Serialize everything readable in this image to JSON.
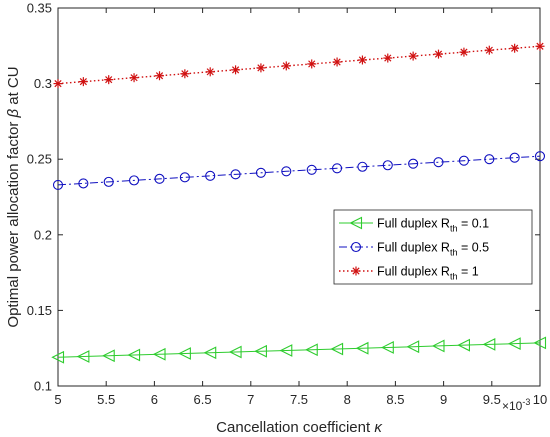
{
  "chart_data": {
    "type": "line",
    "title": "",
    "xlabel_text": "Cancellation coefficient",
    "xlabel_symbol": "κ",
    "ylabel_text": "Optimal power allocation factor",
    "ylabel_symbol": "β",
    "ylabel_suffix": "at CU",
    "x_multiplier": "×10",
    "x_multiplier_exp": "-3",
    "xlim": [
      5,
      10
    ],
    "ylim": [
      0.1,
      0.35
    ],
    "xticks": [
      5,
      5.5,
      6,
      6.5,
      7,
      7.5,
      8,
      8.5,
      9,
      9.5,
      10
    ],
    "xtick_labels": [
      "5",
      "5.5",
      "6",
      "6.5",
      "7",
      "7.5",
      "8",
      "8.5",
      "9",
      "9.5",
      "10"
    ],
    "yticks": [
      0.1,
      0.15,
      0.2,
      0.25,
      0.3,
      0.35
    ],
    "ytick_labels": [
      "0.1",
      "0.15",
      "0.2",
      "0.25",
      "0.3",
      "0.35"
    ],
    "grid": false,
    "legend_position": "center-right",
    "x": [
      5.0,
      5.263,
      5.526,
      5.789,
      6.053,
      6.316,
      6.579,
      6.842,
      7.105,
      7.368,
      7.632,
      7.895,
      8.158,
      8.421,
      8.684,
      8.947,
      9.211,
      9.474,
      9.737,
      10.0
    ],
    "series": [
      {
        "label_prefix": "Full duplex R",
        "label_sub": "th",
        "label_suffix": " = 0.1",
        "color": "#2ecc2e",
        "line_style": "solid",
        "marker": "triangle-left",
        "values": [
          0.119,
          0.1195,
          0.12,
          0.1205,
          0.121,
          0.1215,
          0.122,
          0.1225,
          0.123,
          0.1235,
          0.124,
          0.1245,
          0.125,
          0.1255,
          0.126,
          0.1265,
          0.127,
          0.1275,
          0.128,
          0.1285
        ]
      },
      {
        "label_prefix": "Full duplex R",
        "label_sub": "th",
        "label_suffix": " = 0.5",
        "color": "#1010c0",
        "line_style": "dashdot",
        "marker": "circle",
        "values": [
          0.233,
          0.234,
          0.235,
          0.236,
          0.237,
          0.238,
          0.239,
          0.24,
          0.241,
          0.242,
          0.243,
          0.244,
          0.245,
          0.246,
          0.247,
          0.248,
          0.249,
          0.25,
          0.251,
          0.252
        ]
      },
      {
        "label_prefix": "Full duplex R",
        "label_sub": "th",
        "label_suffix": " = 1",
        "color": "#d01010",
        "line_style": "dotted",
        "marker": "asterisk",
        "values": [
          0.3,
          0.3013,
          0.3026,
          0.3039,
          0.3052,
          0.3065,
          0.3078,
          0.3091,
          0.3104,
          0.3117,
          0.313,
          0.3143,
          0.3156,
          0.3169,
          0.3182,
          0.3195,
          0.3208,
          0.3221,
          0.3234,
          0.3247
        ]
      }
    ]
  }
}
